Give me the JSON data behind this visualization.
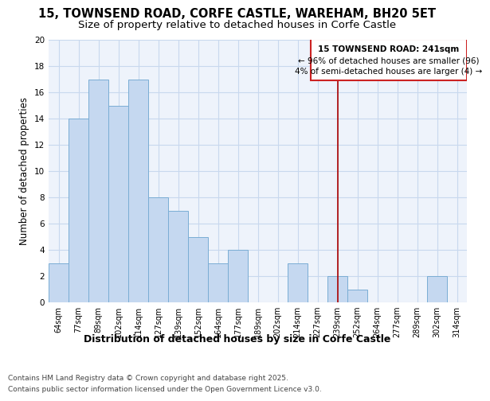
{
  "title1": "15, TOWNSEND ROAD, CORFE CASTLE, WAREHAM, BH20 5ET",
  "title2": "Size of property relative to detached houses in Corfe Castle",
  "xlabel": "Distribution of detached houses by size in Corfe Castle",
  "ylabel": "Number of detached properties",
  "categories": [
    "64sqm",
    "77sqm",
    "89sqm",
    "102sqm",
    "114sqm",
    "127sqm",
    "139sqm",
    "152sqm",
    "164sqm",
    "177sqm",
    "189sqm",
    "202sqm",
    "214sqm",
    "227sqm",
    "239sqm",
    "252sqm",
    "264sqm",
    "277sqm",
    "289sqm",
    "302sqm",
    "314sqm"
  ],
  "values": [
    3,
    14,
    17,
    15,
    17,
    8,
    7,
    5,
    3,
    4,
    0,
    0,
    3,
    0,
    2,
    1,
    0,
    0,
    0,
    2,
    0
  ],
  "bar_color": "#c5d8f0",
  "bar_edge_color": "#7aadd4",
  "grid_color": "#c8d8ee",
  "vline_color": "#aa0000",
  "annotation_title": "15 TOWNSEND ROAD: 241sqm",
  "annotation_line1": "← 96% of detached houses are smaller (96)",
  "annotation_line2": "4% of semi-detached houses are larger (4) →",
  "annotation_box_color": "#ffffff",
  "annotation_border_color": "#cc2222",
  "footer1": "Contains HM Land Registry data © Crown copyright and database right 2025.",
  "footer2": "Contains public sector information licensed under the Open Government Licence v3.0.",
  "ylim": [
    0,
    20
  ],
  "yticks": [
    0,
    2,
    4,
    6,
    8,
    10,
    12,
    14,
    16,
    18,
    20
  ],
  "bg_color": "#ffffff",
  "plot_bg_color": "#eef3fb",
  "title1_fontsize": 10.5,
  "title2_fontsize": 9.5,
  "xlabel_fontsize": 9,
  "ylabel_fontsize": 8.5,
  "tick_fontsize": 7,
  "annotation_fontsize": 7.5,
  "footer_fontsize": 6.5
}
